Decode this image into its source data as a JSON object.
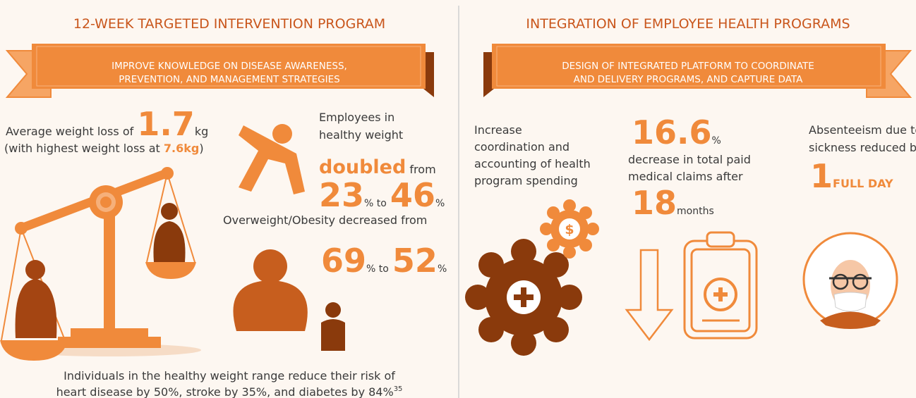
{
  "left": {
    "title": "12-WEEK TARGETED INTERVENTION PROGRAM",
    "banner": [
      "IMPROVE KNOWLEDGE ON DISEASE AWARENESS,",
      "PREVENTION, AND MANAGEMENT STRATEGIES"
    ],
    "weight_loss": {
      "prefix": "Average weight loss of",
      "value": "1.7",
      "unit": "kg",
      "note_prefix": "(with highest weight loss at",
      "note_value": "7.6kg",
      "note_suffix": ")"
    },
    "healthy": {
      "lines": [
        "Employees in",
        "healthy weight"
      ],
      "highlight": "doubled",
      "from": "from",
      "start": "23",
      "to": "% to",
      "end": "46",
      "unit": "%"
    },
    "obesity": {
      "text": "Overweight/Obesity decreased from",
      "start": "69",
      "to": "% to",
      "end": "52",
      "unit": "%"
    },
    "footer": {
      "lines": [
        "Individuals in the healthy weight range reduce their risk  of",
        "heart disease by 50%, stroke by 35%, and diabetes by 84%"
      ],
      "ref": "35"
    }
  },
  "right": {
    "title": "INTEGRATION OF EMPLOYEE HEALTH PROGRAMS",
    "banner": [
      "DESIGN OF INTEGRATED PLATFORM TO COORDINATE",
      "AND DELIVERY PROGRAMS, AND CAPTURE DATA"
    ],
    "coordination": [
      "Increase",
      "coordination and",
      "accounting of health",
      "program spending"
    ],
    "coin": "$",
    "claims": {
      "value": "16.6",
      "unit": "%",
      "lines": [
        "decrease in total paid",
        "medical claims after"
      ],
      "months": "18",
      "months_unit": "months"
    },
    "absenteeism": {
      "lines": [
        "Absenteeism due to",
        "sickness reduced by"
      ],
      "value": "1",
      "unit": "FULL DAY"
    }
  }
}
